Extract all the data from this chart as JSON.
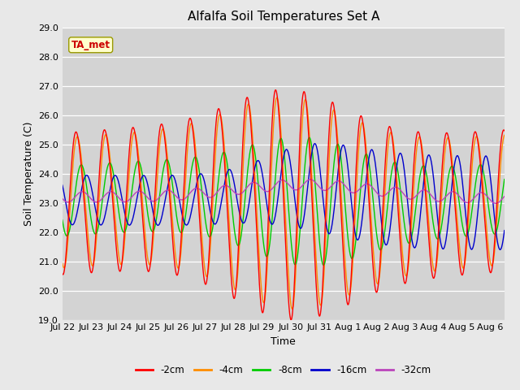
{
  "title": "Alfalfa Soil Temperatures Set A",
  "xlabel": "Time",
  "ylabel": "Soil Temperature (C)",
  "ylim": [
    19.0,
    29.0
  ],
  "yticks": [
    19.0,
    20.0,
    21.0,
    22.0,
    23.0,
    24.0,
    25.0,
    26.0,
    27.0,
    28.0,
    29.0
  ],
  "background_color": "#e8e8e8",
  "plot_bg_color": "#d3d3d3",
  "annotation_label": "TA_met",
  "annotation_color": "#cc0000",
  "annotation_bg": "#ffffcc",
  "series_colors": {
    "-2cm": "#ff0000",
    "-4cm": "#ff8c00",
    "-8cm": "#00cc00",
    "-16cm": "#0000cc",
    "-32cm": "#bb44bb"
  },
  "date_labels": [
    "Jul 22",
    "Jul 23",
    "Jul 24",
    "Jul 25",
    "Jul 26",
    "Jul 27",
    "Jul 28",
    "Jul 29",
    "Jul 30",
    "Jul 31",
    "Aug 1",
    "Aug 2",
    "Aug 3",
    "Aug 4",
    "Aug 5",
    "Aug 6"
  ],
  "date_tick_positions": [
    0,
    1,
    2,
    3,
    4,
    5,
    6,
    7,
    8,
    9,
    10,
    11,
    12,
    13,
    14,
    15
  ]
}
